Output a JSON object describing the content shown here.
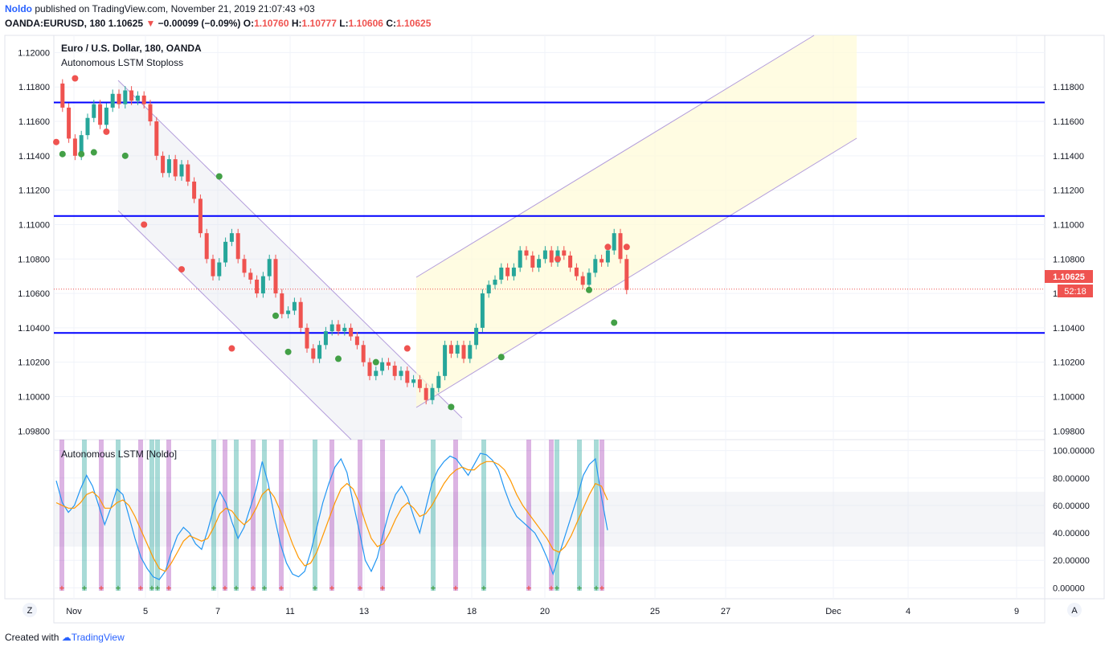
{
  "header": {
    "user": "Noldo",
    "published": "published on TradingView.com, November 21, 2019 21:07:43 +03",
    "symbol": "OANDA:EURUSD, 180",
    "last": "1.10625",
    "change": "−0.00099 (−0.09%)",
    "o_label": "O:",
    "o": "1.10760",
    "h_label": "H:",
    "h": "1.10777",
    "l_label": "L:",
    "l": "1.10606",
    "c_label": "C:",
    "c": "1.10625"
  },
  "legend": {
    "title": "Euro / U.S. Dollar, 180, OANDA",
    "indicator": "Autonomous LSTM Stoploss",
    "oscillator": "Autonomous LSTM [Noldo]"
  },
  "price_tag": {
    "value": "1.10625",
    "countdown": "52:18"
  },
  "footer": {
    "created": "Created with",
    "brand": "TradingView"
  },
  "corner_buttons": {
    "left": "Z",
    "right": "A"
  },
  "colors": {
    "up": "#26a69a",
    "down": "#ef5350",
    "hline": "#0000ff",
    "channel": "#b39ddb",
    "fast": "#2196f3",
    "slow": "#ff9800",
    "buy_bar": "#26a69a",
    "sell_bar": "#9c27b0"
  },
  "chart_data": [
    {
      "type": "candlestick",
      "title": "Euro / U.S. Dollar, 180, OANDA",
      "ylim": [
        1.0975,
        1.121
      ],
      "y_ticks": [
        "1.12000",
        "1.11800",
        "1.11600",
        "1.11400",
        "1.11200",
        "1.11000",
        "1.10800",
        "1.10600",
        "1.10400",
        "1.10200",
        "1.10000",
        "1.09800"
      ],
      "right_ticks": [
        "1.11800",
        "1.11600",
        "1.11400",
        "1.11200",
        "1.11000",
        "1.10800",
        "1.10600",
        "1.10400",
        "1.10200",
        "1.10000",
        "1.09800"
      ],
      "x_ticks": [
        "Nov",
        "5",
        "7",
        "11",
        "13",
        "18",
        "20",
        "25",
        "27",
        "Dec",
        "4",
        "9"
      ],
      "horizontal_levels": [
        1.1171,
        1.1105,
        1.1037
      ],
      "last_price": 1.10625,
      "candle_path": [
        1.1182,
        1.1168,
        1.115,
        1.114,
        1.1152,
        1.1162,
        1.117,
        1.1158,
        1.1168,
        1.1176,
        1.117,
        1.1178,
        1.1172,
        1.1175,
        1.117,
        1.116,
        1.114,
        1.113,
        1.1138,
        1.1128,
        1.1135,
        1.1125,
        1.1115,
        1.1095,
        1.108,
        1.107,
        1.1078,
        1.109,
        1.1095,
        1.108,
        1.1072,
        1.1068,
        1.106,
        1.107,
        1.108,
        1.106,
        1.1048,
        1.105,
        1.1055,
        1.104,
        1.1028,
        1.1022,
        1.103,
        1.1038,
        1.1042,
        1.1038,
        1.104,
        1.1035,
        1.103,
        1.102,
        1.1012,
        1.1015,
        1.102,
        1.1018,
        1.1012,
        1.1015,
        1.1008,
        1.101,
        1.1005,
        1.0998,
        1.1005,
        1.1012,
        1.103,
        1.1025,
        1.103,
        1.1022,
        1.103,
        1.104,
        1.106,
        1.1065,
        1.1068,
        1.1075,
        1.107,
        1.1075,
        1.1085,
        1.1082,
        1.1075,
        1.108,
        1.1085,
        1.1078,
        1.1085,
        1.1082,
        1.1075,
        1.107,
        1.1065,
        1.1072,
        1.108,
        1.1078,
        1.1085,
        1.1095,
        1.108,
        1.1062
      ],
      "buy_markers": [
        [
          1,
          1.1141
        ],
        [
          4,
          1.1141
        ],
        [
          6,
          1.1142
        ],
        [
          11,
          1.114
        ],
        [
          26,
          1.1128
        ],
        [
          35,
          1.1047
        ],
        [
          37,
          1.1026
        ],
        [
          45,
          1.1022
        ],
        [
          51,
          1.102
        ],
        [
          63,
          1.0994
        ],
        [
          71,
          1.1023
        ],
        [
          85,
          1.1062
        ],
        [
          89,
          1.1043
        ]
      ],
      "sell_markers": [
        [
          0,
          1.1148
        ],
        [
          3,
          1.1185
        ],
        [
          8,
          1.1154
        ],
        [
          14,
          1.11
        ],
        [
          20,
          1.1074
        ],
        [
          28,
          1.1028
        ],
        [
          56,
          1.1028
        ],
        [
          80,
          1.108
        ],
        [
          88,
          1.1087
        ],
        [
          91,
          1.1087
        ]
      ]
    },
    {
      "type": "line",
      "title": "Autonomous LSTM [Noldo]",
      "ylim": [
        -8,
        108
      ],
      "y_ticks": [
        "100.00000",
        "80.00000",
        "60.00000",
        "40.00000",
        "20.00000",
        "0.00000"
      ],
      "band": [
        30,
        70
      ],
      "series": [
        {
          "values": [
            78,
            62,
            55,
            60,
            72,
            82,
            74,
            60,
            46,
            58,
            72,
            68,
            52,
            36,
            22,
            14,
            8,
            6,
            12,
            26,
            38,
            44,
            40,
            32,
            28,
            42,
            58,
            70,
            62,
            48,
            36,
            44,
            58,
            72,
            92,
            76,
            52,
            32,
            18,
            10,
            8,
            12,
            26,
            44,
            62,
            76,
            88,
            94,
            84,
            62,
            42,
            20,
            12,
            22,
            40,
            56,
            68,
            74,
            66,
            52,
            40,
            58,
            76,
            86,
            92,
            96,
            94,
            88,
            82,
            90,
            98,
            97,
            93,
            86,
            72,
            60,
            52,
            48,
            44,
            40,
            32,
            22,
            10,
            24,
            38,
            52,
            66,
            82,
            90,
            94,
            66,
            42
          ]
        },
        {
          "values": [
            62,
            60,
            58,
            58,
            62,
            68,
            70,
            66,
            58,
            58,
            62,
            64,
            60,
            52,
            42,
            32,
            22,
            14,
            12,
            18,
            26,
            34,
            38,
            36,
            34,
            36,
            44,
            54,
            58,
            56,
            50,
            46,
            50,
            58,
            68,
            72,
            66,
            56,
            44,
            32,
            22,
            16,
            18,
            26,
            38,
            50,
            62,
            72,
            76,
            72,
            62,
            48,
            36,
            30,
            32,
            40,
            50,
            58,
            62,
            58,
            52,
            54,
            60,
            68,
            76,
            82,
            86,
            88,
            86,
            86,
            90,
            92,
            92,
            90,
            86,
            78,
            68,
            60,
            54,
            48,
            42,
            36,
            28,
            26,
            30,
            38,
            48,
            58,
            68,
            76,
            74,
            64
          ]
        }
      ],
      "buy_bars": [
        5,
        11,
        17,
        18,
        28,
        32,
        37,
        46,
        67,
        76,
        89,
        93,
        96
      ],
      "sell_bars": [
        1,
        8,
        15,
        20,
        30,
        35,
        40,
        49,
        54,
        58,
        71,
        84,
        88,
        97
      ]
    }
  ]
}
